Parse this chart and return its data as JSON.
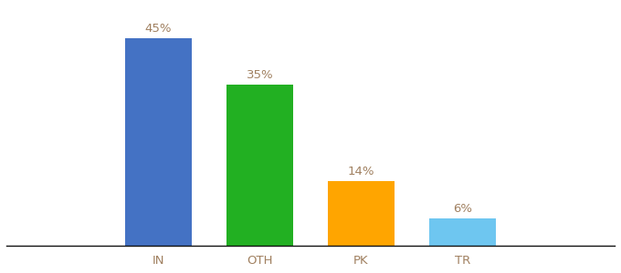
{
  "categories": [
    "IN",
    "OTH",
    "PK",
    "TR"
  ],
  "values": [
    45,
    35,
    14,
    6
  ],
  "labels": [
    "45%",
    "35%",
    "14%",
    "6%"
  ],
  "bar_colors": [
    "#4472C4",
    "#22B022",
    "#FFA500",
    "#6EC6F0"
  ],
  "background_color": "#ffffff",
  "ylim": [
    0,
    52
  ],
  "xlim": [
    -1.5,
    4.5
  ],
  "bar_width": 0.65,
  "label_fontsize": 9.5,
  "tick_fontsize": 9.5,
  "label_color": "#a08060"
}
